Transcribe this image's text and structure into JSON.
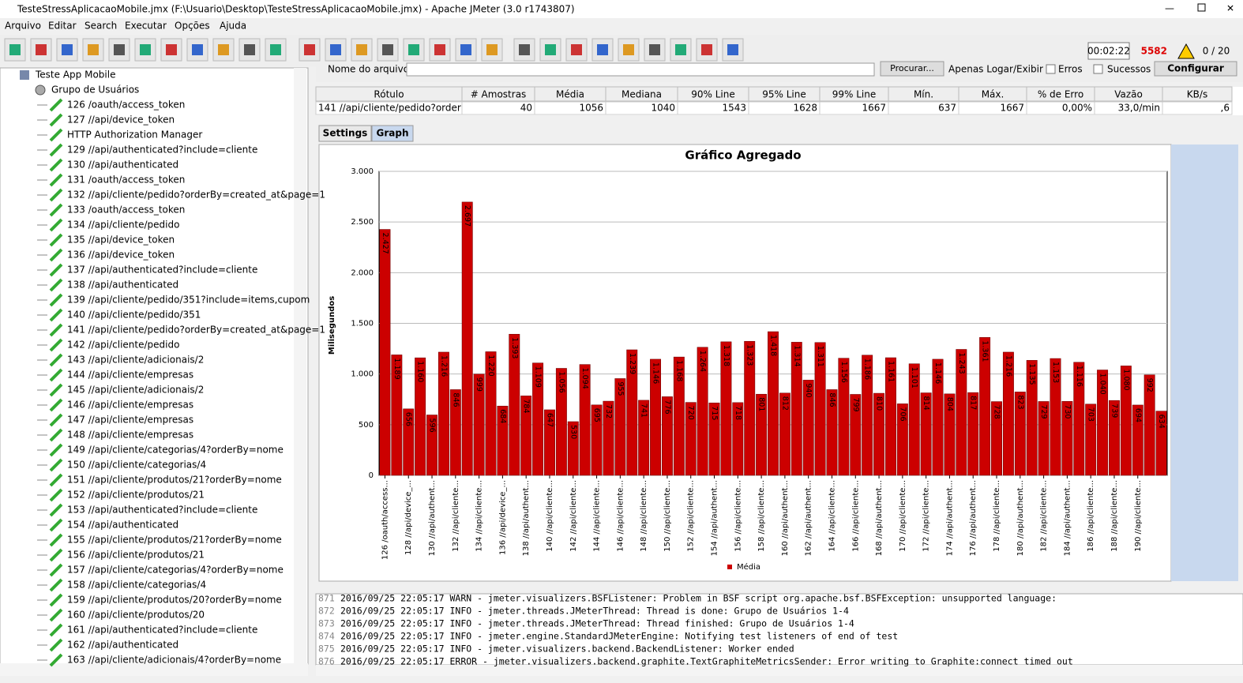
{
  "window": {
    "title": "TesteStressAplicacaoMobile.jmx (F:\\Usuario\\Desktop\\TesteStressAplicacaoMobile.jmx) - Apache JMeter (3.0 r1743807)"
  },
  "menu": [
    "Arquivo",
    "Editar",
    "Search",
    "Executar",
    "Opções",
    "Ajuda"
  ],
  "status": {
    "timer": "00:02:22",
    "errors": "5582",
    "threads": "0 / 20"
  },
  "tree": {
    "root": "Teste App Mobile",
    "group": "Grupo de Usuários",
    "items": [
      "126 /oauth/access_token",
      "127 //api/device_token",
      "HTTP Authorization Manager",
      "129 //api/authenticated?include=cliente",
      "130 //api/authenticated",
      "131 /oauth/access_token",
      "132 //api/cliente/pedido?orderBy=created_at&page=1",
      "133 /oauth/access_token",
      "134 //api/cliente/pedido",
      "135 //api/device_token",
      "136 //api/device_token",
      "137 //api/authenticated?include=cliente",
      "138 //api/authenticated",
      "139 //api/cliente/pedido/351?include=items,cupom",
      "140 //api/cliente/pedido/351",
      "141 //api/cliente/pedido?orderBy=created_at&page=1",
      "142 //api/cliente/pedido",
      "143 //api/cliente/adicionais/2",
      "144 //api/cliente/empresas",
      "145 //api/cliente/adicionais/2",
      "146 //api/cliente/empresas",
      "147 //api/cliente/empresas",
      "148 //api/cliente/empresas",
      "149 //api/cliente/categorias/4?orderBy=nome",
      "150 //api/cliente/categorias/4",
      "151 //api/cliente/produtos/21?orderBy=nome",
      "152 //api/cliente/produtos/21",
      "153 //api/authenticated?include=cliente",
      "154 //api/authenticated",
      "155 //api/cliente/produtos/21?orderBy=nome",
      "156 //api/cliente/produtos/21",
      "157 //api/cliente/categorias/4?orderBy=nome",
      "158 //api/cliente/categorias/4",
      "159 //api/cliente/produtos/20?orderBy=nome",
      "160 //api/cliente/produtos/20",
      "161 //api/authenticated?include=cliente",
      "162 //api/authenticated",
      "163 //api/cliente/adicionais/4?orderBy=nome"
    ]
  },
  "file_bar": {
    "label": "Nome do arquivo",
    "browse": "Procurar...",
    "log_only": "Apenas Logar/Exibir",
    "errors": "Erros",
    "successes": "Sucessos",
    "configure": "Configurar"
  },
  "table": {
    "headers": [
      "Rótulo",
      "# Amostras",
      "Média",
      "Mediana",
      "90% Line",
      "95% Line",
      "99% Line",
      "Mín.",
      "Máx.",
      "% de Erro",
      "Vazão",
      "KB/s"
    ],
    "rows": [
      [
        "141 //api/cliente/pedido?orderB...",
        40,
        1056,
        1040,
        1543,
        1628,
        1667,
        637,
        1667,
        "0,00%",
        "33,0/min",
        ",6"
      ]
    ]
  },
  "tabs": [
    "Settings",
    "Graph"
  ],
  "chart_data": {
    "type": "bar",
    "title": "Gráfico Agregado",
    "y_label": "Milisegundos",
    "legend": "Média",
    "color": "#cc0000",
    "categories": [
      "126 /oauth/access...",
      null,
      "128 //api/device_...",
      null,
      "130 //api/authent...",
      null,
      "132 //api/cliente...",
      null,
      "134 //api/cliente...",
      null,
      "136 //api/device_...",
      null,
      "138 //api/authent...",
      null,
      "140 //api/cliente...",
      null,
      "142 //api/cliente...",
      null,
      "144 //api/cliente...",
      null,
      "146 //api/cliente...",
      null,
      "148 //api/cliente...",
      null,
      "150 //api/cliente...",
      null,
      "152 //api/cliente...",
      null,
      "154 //api/authent...",
      null,
      "156 //api/cliente...",
      null,
      "158 //api/cliente...",
      null,
      "160 //api/authent...",
      null,
      "162 //api/authent...",
      null,
      "164 //api/cliente...",
      null,
      "166 //api/cliente...",
      null,
      "168 //api/authent...",
      null,
      "170 //api/cliente...",
      null,
      "172 //api/cliente...",
      null,
      "174 //api/authent...",
      null,
      "176 //api/authent...",
      null,
      "178 //api/cliente...",
      null,
      "180 //api/authent...",
      null,
      "182 //api/cliente...",
      null,
      "184 //api/authent...",
      null,
      "186 //api/cliente...",
      null,
      "188 //api/cliente...",
      null,
      "190 //api/cliente...",
      null,
      null
    ],
    "values": [
      2427,
      1189,
      656,
      1160,
      596,
      1216,
      846,
      2697,
      999,
      1220,
      684,
      1393,
      784,
      1109,
      647,
      1056,
      530,
      1094,
      695,
      732,
      955,
      1239,
      741,
      1146,
      776,
      1168,
      720,
      1264,
      715,
      1318,
      718,
      1323,
      801,
      1418,
      812,
      1314,
      940,
      1311,
      846,
      1156,
      799,
      1186,
      810,
      1161,
      706,
      1101,
      814,
      1146,
      804,
      1243,
      817,
      1361,
      728,
      1216,
      823,
      1135,
      729,
      1153,
      730,
      1116,
      703,
      1040,
      739,
      1080,
      694,
      992,
      634
    ],
    "value_labels": [
      "2.427",
      "1.189",
      "656",
      "1.160",
      "596",
      "1.216",
      "846",
      "2.697",
      "999",
      "1.220",
      "684",
      "1.393",
      "784",
      "1.109",
      "647",
      "1.056",
      "530",
      "1.094",
      "695",
      "732",
      "955",
      "1.239",
      "741",
      "1.146",
      "776",
      "1.168",
      "720",
      "1.264",
      "715",
      "1.318",
      "718",
      "1.323",
      "801",
      "1.418",
      "812",
      "1.314",
      "940",
      "1.311",
      "846",
      "1.156",
      "799",
      "1.186",
      "810",
      "1.161",
      "706",
      "1.101",
      "814",
      "1.146",
      "804",
      "1.243",
      "817",
      "1.361",
      "728",
      "1.216",
      "823",
      "1.135",
      "729",
      "1.153",
      "730",
      "1.116",
      "703",
      "1.040",
      "739",
      "1.080",
      "694",
      "992",
      "634"
    ],
    "ylim": [
      0,
      3000
    ],
    "yticks": [
      {
        "value": 0,
        "label": "0"
      },
      {
        "value": 500,
        "label": "500"
      },
      {
        "value": 1000,
        "label": "1.000"
      },
      {
        "value": 1500,
        "label": "1.500"
      },
      {
        "value": 2000,
        "label": "2.000"
      },
      {
        "value": 2500,
        "label": "2.500"
      },
      {
        "value": 3000,
        "label": "3.000"
      }
    ],
    "grid": true
  },
  "log": [
    [
      "871",
      "2016/09/25 22:05:17 WARN  - jmeter.visualizers.BSFListener: Problem in BSF script org.apache.bsf.BSFException: unsupported language:"
    ],
    [
      "872",
      "2016/09/25 22:05:17 INFO  - jmeter.threads.JMeterThread: Thread is done: Grupo de Usuários 1-4"
    ],
    [
      "873",
      "2016/09/25 22:05:17 INFO  - jmeter.threads.JMeterThread: Thread finished: Grupo de Usuários 1-4"
    ],
    [
      "874",
      "2016/09/25 22:05:17 INFO  - jmeter.engine.StandardJMeterEngine: Notifying test listeners of end of test"
    ],
    [
      "875",
      "2016/09/25 22:05:17 INFO  - jmeter.visualizers.backend.BackendListener: Worker ended"
    ],
    [
      "876",
      "2016/09/25 22:05:17 ERROR - jmeter.visualizers.backend.graphite.TextGraphiteMetricsSender: Error writing to Graphite:connect timed out"
    ]
  ]
}
